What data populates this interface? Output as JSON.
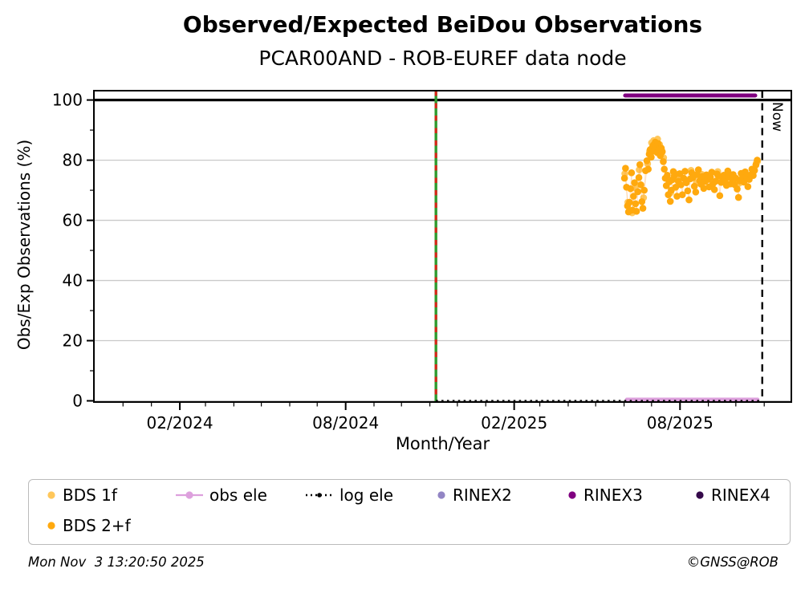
{
  "chart_data": {
    "type": "scatter",
    "title": "Observed/Expected BeiDou Observations",
    "subtitle": "PCAR00AND - ROB-EUREF data node",
    "xlabel": "Month/Year",
    "ylabel": "Obs/Exp Observations (%)",
    "x_unit": "decimal_year",
    "xlim": [
      2023.828,
      2025.914
    ],
    "ylim": [
      -0.4,
      103.1
    ],
    "grid": "y-major",
    "legend_position": "below",
    "colors": {
      "grid": "#C9C9C9",
      "frame": "#000000"
    },
    "x_major_ticks": [
      {
        "t": 2024.085,
        "label": "02/2024"
      },
      {
        "t": 2024.581,
        "label": "08/2024"
      },
      {
        "t": 2025.085,
        "label": "02/2025"
      },
      {
        "t": 2025.581,
        "label": "08/2025"
      }
    ],
    "x_minor_tick_interval_months": 1,
    "y_major_ticks": [
      0,
      20,
      40,
      60,
      80,
      100
    ],
    "y_minor_ticks": [
      10,
      30,
      50,
      70,
      90
    ],
    "reference_lines": {
      "hundred_percent": {
        "value": 100,
        "color": "#000000"
      },
      "data_start": {
        "t": 2024.851,
        "green": "#2E9B2E",
        "red": "#DD2218",
        "style": "solid-green-with-red-dashes"
      },
      "now": {
        "t": 2025.827,
        "label": "Now",
        "style": "black-dashed"
      }
    },
    "series": [
      {
        "name": "obs ele",
        "type": "line",
        "color": "#DDA0DD",
        "width": 4.6,
        "points": [
          [
            2025.422,
            0.45
          ],
          [
            2025.813,
            0.45
          ]
        ]
      },
      {
        "name": "log ele",
        "type": "dotted-line",
        "color": "#000000",
        "width": 3,
        "dash": "2.5 4.4",
        "points": [
          [
            2024.851,
            -0.1
          ],
          [
            2025.827,
            -0.1
          ]
        ]
      },
      {
        "name": "RINEX3",
        "type": "line",
        "color": "#800080",
        "width": 5,
        "points": [
          [
            2025.417,
            101.5
          ],
          [
            2025.806,
            101.5
          ]
        ]
      },
      {
        "name": "BDS 1f",
        "type": "scatter",
        "color": "#FFC75A",
        "connector": "rgba(255,190,110,0.35)",
        "points": [
          [
            2025.416,
            75.5
          ],
          [
            2025.425,
            66.0
          ],
          [
            2025.438,
            62.5
          ],
          [
            2025.447,
            70.8
          ],
          [
            2025.459,
            76.8
          ],
          [
            2025.472,
            67.5
          ],
          [
            2025.484,
            78.8
          ],
          [
            2025.49,
            83.0
          ],
          [
            2025.496,
            85.8
          ],
          [
            2025.502,
            86.5
          ],
          [
            2025.508,
            84.8
          ],
          [
            2025.514,
            87.0
          ],
          [
            2025.52,
            85.2
          ],
          [
            2025.526,
            83.4
          ],
          [
            2025.532,
            80.8
          ],
          [
            2025.541,
            73.9
          ],
          [
            2025.553,
            69.2
          ],
          [
            2025.566,
            75.6
          ],
          [
            2025.582,
            74.6
          ],
          [
            2025.598,
            73.4
          ],
          [
            2025.614,
            76.6
          ],
          [
            2025.63,
            72.4
          ],
          [
            2025.646,
            75.3
          ],
          [
            2025.662,
            74.0
          ],
          [
            2025.678,
            72.8
          ],
          [
            2025.694,
            76.2
          ],
          [
            2025.71,
            73.7
          ],
          [
            2025.726,
            75.8
          ],
          [
            2025.742,
            74.3
          ],
          [
            2025.758,
            72.3
          ],
          [
            2025.774,
            75.9
          ],
          [
            2025.79,
            74.8
          ],
          [
            2025.801,
            76.2
          ],
          [
            2025.809,
            79.0
          ],
          [
            2025.813,
            79.6
          ]
        ]
      },
      {
        "name": "BDS 2+f",
        "type": "scatter",
        "color": "#FFA90E",
        "connector": "rgba(255,160,60,0.35)",
        "points": [
          [
            2025.415,
            74.0
          ],
          [
            2025.418,
            77.3
          ],
          [
            2025.421,
            71.0
          ],
          [
            2025.424,
            64.8
          ],
          [
            2025.427,
            62.8
          ],
          [
            2025.43,
            66.0
          ],
          [
            2025.433,
            70.5
          ],
          [
            2025.436,
            75.8
          ],
          [
            2025.439,
            63.4
          ],
          [
            2025.442,
            68.0
          ],
          [
            2025.445,
            72.5
          ],
          [
            2025.448,
            65.5
          ],
          [
            2025.451,
            63.0
          ],
          [
            2025.455,
            69.5
          ],
          [
            2025.458,
            74.2
          ],
          [
            2025.461,
            78.5
          ],
          [
            2025.464,
            71.8
          ],
          [
            2025.467,
            66.2
          ],
          [
            2025.47,
            64.0
          ],
          [
            2025.474,
            70.0
          ],
          [
            2025.478,
            76.5
          ],
          [
            2025.482,
            79.8
          ],
          [
            2025.486,
            77.0
          ],
          [
            2025.489,
            82.0
          ],
          [
            2025.492,
            83.5
          ],
          [
            2025.495,
            81.0
          ],
          [
            2025.498,
            84.2
          ],
          [
            2025.501,
            85.0
          ],
          [
            2025.504,
            83.0
          ],
          [
            2025.507,
            86.0
          ],
          [
            2025.51,
            84.5
          ],
          [
            2025.513,
            82.5
          ],
          [
            2025.516,
            85.5
          ],
          [
            2025.519,
            83.8
          ],
          [
            2025.522,
            81.5
          ],
          [
            2025.525,
            84.0
          ],
          [
            2025.528,
            82.8
          ],
          [
            2025.531,
            79.5
          ],
          [
            2025.534,
            77.0
          ],
          [
            2025.537,
            74.0
          ],
          [
            2025.54,
            71.5
          ],
          [
            2025.543,
            75.0
          ],
          [
            2025.546,
            68.5
          ],
          [
            2025.549,
            72.8
          ],
          [
            2025.552,
            66.3
          ],
          [
            2025.555,
            70.0
          ],
          [
            2025.558,
            73.5
          ],
          [
            2025.561,
            76.2
          ],
          [
            2025.564,
            74.8
          ],
          [
            2025.568,
            71.0
          ],
          [
            2025.572,
            68.0
          ],
          [
            2025.576,
            73.0
          ],
          [
            2025.58,
            75.5
          ],
          [
            2025.584,
            71.8
          ],
          [
            2025.588,
            68.5
          ],
          [
            2025.592,
            74.0
          ],
          [
            2025.596,
            76.3
          ],
          [
            2025.6,
            72.5
          ],
          [
            2025.604,
            69.8
          ],
          [
            2025.608,
            66.8
          ],
          [
            2025.612,
            73.8
          ],
          [
            2025.616,
            75.8
          ],
          [
            2025.62,
            74.2
          ],
          [
            2025.624,
            71.3
          ],
          [
            2025.628,
            69.4
          ],
          [
            2025.632,
            75.2
          ],
          [
            2025.636,
            76.8
          ],
          [
            2025.64,
            73.2
          ],
          [
            2025.644,
            72.0
          ],
          [
            2025.648,
            74.6
          ],
          [
            2025.652,
            70.6
          ],
          [
            2025.656,
            72.9
          ],
          [
            2025.66,
            75.1
          ],
          [
            2025.664,
            73.6
          ],
          [
            2025.668,
            71.1
          ],
          [
            2025.672,
            74.3
          ],
          [
            2025.676,
            76.0
          ],
          [
            2025.68,
            72.2
          ],
          [
            2025.684,
            70.2
          ],
          [
            2025.688,
            73.0
          ],
          [
            2025.692,
            75.4
          ],
          [
            2025.696,
            74.7
          ],
          [
            2025.7,
            68.2
          ],
          [
            2025.704,
            72.6
          ],
          [
            2025.708,
            74.1
          ],
          [
            2025.712,
            75.0
          ],
          [
            2025.716,
            73.3
          ],
          [
            2025.72,
            71.6
          ],
          [
            2025.724,
            76.4
          ],
          [
            2025.728,
            74.4
          ],
          [
            2025.732,
            72.1
          ],
          [
            2025.736,
            73.9
          ],
          [
            2025.74,
            75.2
          ],
          [
            2025.744,
            71.9
          ],
          [
            2025.748,
            74.0
          ],
          [
            2025.752,
            70.4
          ],
          [
            2025.756,
            67.6
          ],
          [
            2025.76,
            73.1
          ],
          [
            2025.764,
            75.6
          ],
          [
            2025.768,
            74.2
          ],
          [
            2025.772,
            72.7
          ],
          [
            2025.776,
            76.1
          ],
          [
            2025.78,
            74.6
          ],
          [
            2025.784,
            71.2
          ],
          [
            2025.788,
            73.6
          ],
          [
            2025.792,
            75.1
          ],
          [
            2025.796,
            77.0
          ],
          [
            2025.8,
            74.9
          ],
          [
            2025.804,
            76.6
          ],
          [
            2025.808,
            78.4
          ],
          [
            2025.812,
            80.0
          ]
        ]
      }
    ],
    "legend": {
      "items": [
        {
          "label": "BDS 1f",
          "marker": "dot",
          "color": "#FFC75A"
        },
        {
          "label": "obs ele",
          "marker": "line-dot",
          "color": "#DDA0DD"
        },
        {
          "label": "log ele",
          "marker": "dotted-line-dot",
          "color": "#000000"
        },
        {
          "label": "RINEX2",
          "marker": "dot",
          "color": "#9285C4"
        },
        {
          "label": "RINEX3",
          "marker": "dot",
          "color": "#800080"
        },
        {
          "label": "RINEX4",
          "marker": "dot",
          "color": "#35094A"
        },
        {
          "label": "BDS 2+f",
          "marker": "dot",
          "color": "#FFA90E"
        }
      ]
    }
  },
  "footer": {
    "timestamp": "Mon Nov  3 13:20:50 2025",
    "copyright": "©GNSS@ROB"
  }
}
